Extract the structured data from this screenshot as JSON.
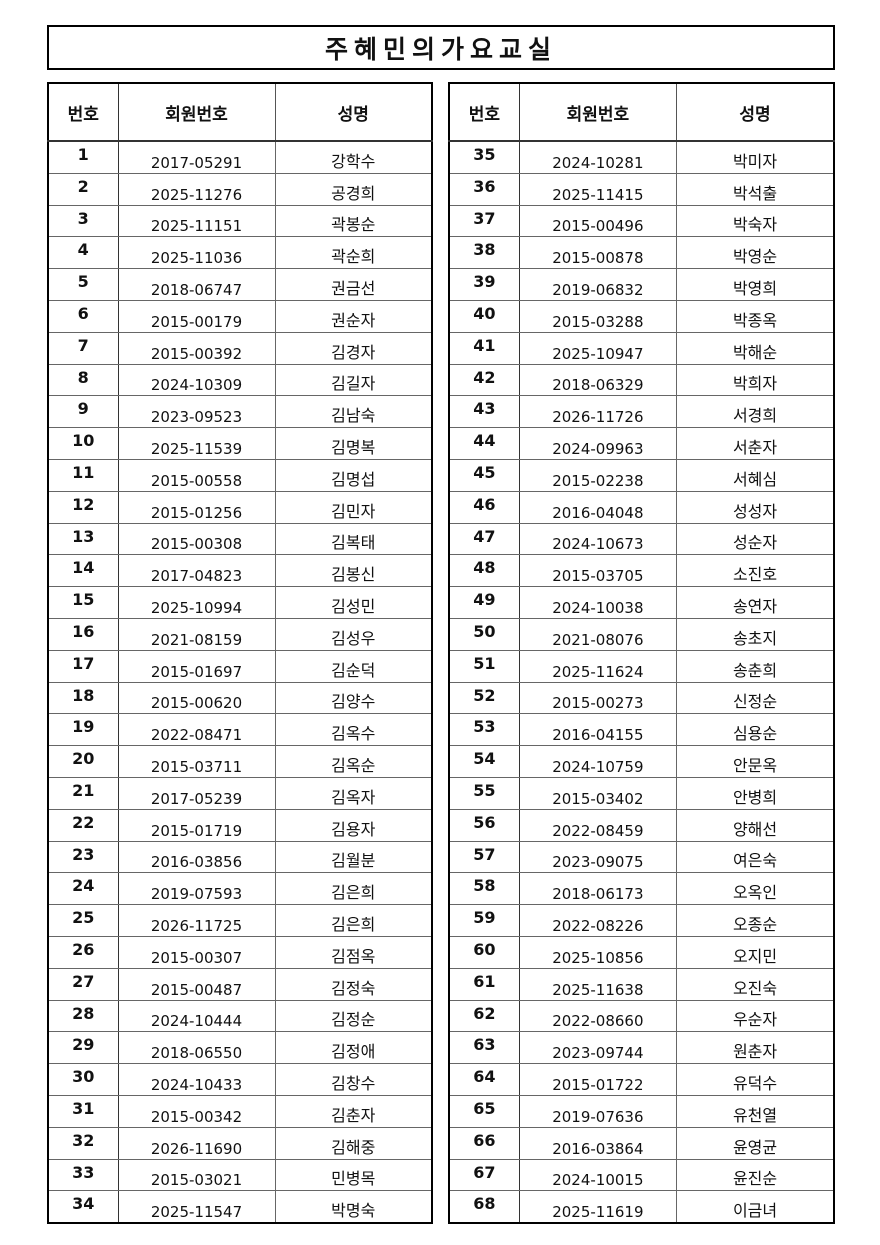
{
  "title": "주혜민의가요교실",
  "headers": {
    "no": "번호",
    "member_id": "회원번호",
    "name": "성명"
  },
  "left_rows": [
    {
      "no": "1",
      "id": "2017-05291",
      "name": "강학수"
    },
    {
      "no": "2",
      "id": "2025-11276",
      "name": "공경희"
    },
    {
      "no": "3",
      "id": "2025-11151",
      "name": "곽봉순"
    },
    {
      "no": "4",
      "id": "2025-11036",
      "name": "곽순희"
    },
    {
      "no": "5",
      "id": "2018-06747",
      "name": "권금선"
    },
    {
      "no": "6",
      "id": "2015-00179",
      "name": "권순자"
    },
    {
      "no": "7",
      "id": "2015-00392",
      "name": "김경자"
    },
    {
      "no": "8",
      "id": "2024-10309",
      "name": "김길자"
    },
    {
      "no": "9",
      "id": "2023-09523",
      "name": "김남숙"
    },
    {
      "no": "10",
      "id": "2025-11539",
      "name": "김명복"
    },
    {
      "no": "11",
      "id": "2015-00558",
      "name": "김명섭"
    },
    {
      "no": "12",
      "id": "2015-01256",
      "name": "김민자"
    },
    {
      "no": "13",
      "id": "2015-00308",
      "name": "김복태"
    },
    {
      "no": "14",
      "id": "2017-04823",
      "name": "김봉신"
    },
    {
      "no": "15",
      "id": "2025-10994",
      "name": "김성민"
    },
    {
      "no": "16",
      "id": "2021-08159",
      "name": "김성우"
    },
    {
      "no": "17",
      "id": "2015-01697",
      "name": "김순덕"
    },
    {
      "no": "18",
      "id": "2015-00620",
      "name": "김양수"
    },
    {
      "no": "19",
      "id": "2022-08471",
      "name": "김옥수"
    },
    {
      "no": "20",
      "id": "2015-03711",
      "name": "김옥순"
    },
    {
      "no": "21",
      "id": "2017-05239",
      "name": "김옥자"
    },
    {
      "no": "22",
      "id": "2015-01719",
      "name": "김용자"
    },
    {
      "no": "23",
      "id": "2016-03856",
      "name": "김월분"
    },
    {
      "no": "24",
      "id": "2019-07593",
      "name": "김은희"
    },
    {
      "no": "25",
      "id": "2026-11725",
      "name": "김은희"
    },
    {
      "no": "26",
      "id": "2015-00307",
      "name": "김점옥"
    },
    {
      "no": "27",
      "id": "2015-00487",
      "name": "김정숙"
    },
    {
      "no": "28",
      "id": "2024-10444",
      "name": "김정순"
    },
    {
      "no": "29",
      "id": "2018-06550",
      "name": "김정애"
    },
    {
      "no": "30",
      "id": "2024-10433",
      "name": "김창수"
    },
    {
      "no": "31",
      "id": "2015-00342",
      "name": "김춘자"
    },
    {
      "no": "32",
      "id": "2026-11690",
      "name": "김해중"
    },
    {
      "no": "33",
      "id": "2015-03021",
      "name": "민병목"
    },
    {
      "no": "34",
      "id": "2025-11547",
      "name": "박명숙"
    }
  ],
  "right_rows": [
    {
      "no": "35",
      "id": "2024-10281",
      "name": "박미자"
    },
    {
      "no": "36",
      "id": "2025-11415",
      "name": "박석출"
    },
    {
      "no": "37",
      "id": "2015-00496",
      "name": "박숙자"
    },
    {
      "no": "38",
      "id": "2015-00878",
      "name": "박영순"
    },
    {
      "no": "39",
      "id": "2019-06832",
      "name": "박영희"
    },
    {
      "no": "40",
      "id": "2015-03288",
      "name": "박종옥"
    },
    {
      "no": "41",
      "id": "2025-10947",
      "name": "박해순"
    },
    {
      "no": "42",
      "id": "2018-06329",
      "name": "박희자"
    },
    {
      "no": "43",
      "id": "2026-11726",
      "name": "서경희"
    },
    {
      "no": "44",
      "id": "2024-09963",
      "name": "서춘자"
    },
    {
      "no": "45",
      "id": "2015-02238",
      "name": "서혜심"
    },
    {
      "no": "46",
      "id": "2016-04048",
      "name": "성성자"
    },
    {
      "no": "47",
      "id": "2024-10673",
      "name": "성순자"
    },
    {
      "no": "48",
      "id": "2015-03705",
      "name": "소진호"
    },
    {
      "no": "49",
      "id": "2024-10038",
      "name": "송연자"
    },
    {
      "no": "50",
      "id": "2021-08076",
      "name": "송초지"
    },
    {
      "no": "51",
      "id": "2025-11624",
      "name": "송춘희"
    },
    {
      "no": "52",
      "id": "2015-00273",
      "name": "신정순"
    },
    {
      "no": "53",
      "id": "2016-04155",
      "name": "심용순"
    },
    {
      "no": "54",
      "id": "2024-10759",
      "name": "안문옥"
    },
    {
      "no": "55",
      "id": "2015-03402",
      "name": "안병희"
    },
    {
      "no": "56",
      "id": "2022-08459",
      "name": "양해선"
    },
    {
      "no": "57",
      "id": "2023-09075",
      "name": "여은숙"
    },
    {
      "no": "58",
      "id": "2018-06173",
      "name": "오옥인"
    },
    {
      "no": "59",
      "id": "2022-08226",
      "name": "오종순"
    },
    {
      "no": "60",
      "id": "2025-10856",
      "name": "오지민"
    },
    {
      "no": "61",
      "id": "2025-11638",
      "name": "오진숙"
    },
    {
      "no": "62",
      "id": "2022-08660",
      "name": "우순자"
    },
    {
      "no": "63",
      "id": "2023-09744",
      "name": "원춘자"
    },
    {
      "no": "64",
      "id": "2015-01722",
      "name": "유덕수"
    },
    {
      "no": "65",
      "id": "2019-07636",
      "name": "유천열"
    },
    {
      "no": "66",
      "id": "2016-03864",
      "name": "윤영균"
    },
    {
      "no": "67",
      "id": "2024-10015",
      "name": "윤진순"
    },
    {
      "no": "68",
      "id": "2025-11619",
      "name": "이금녀"
    }
  ]
}
